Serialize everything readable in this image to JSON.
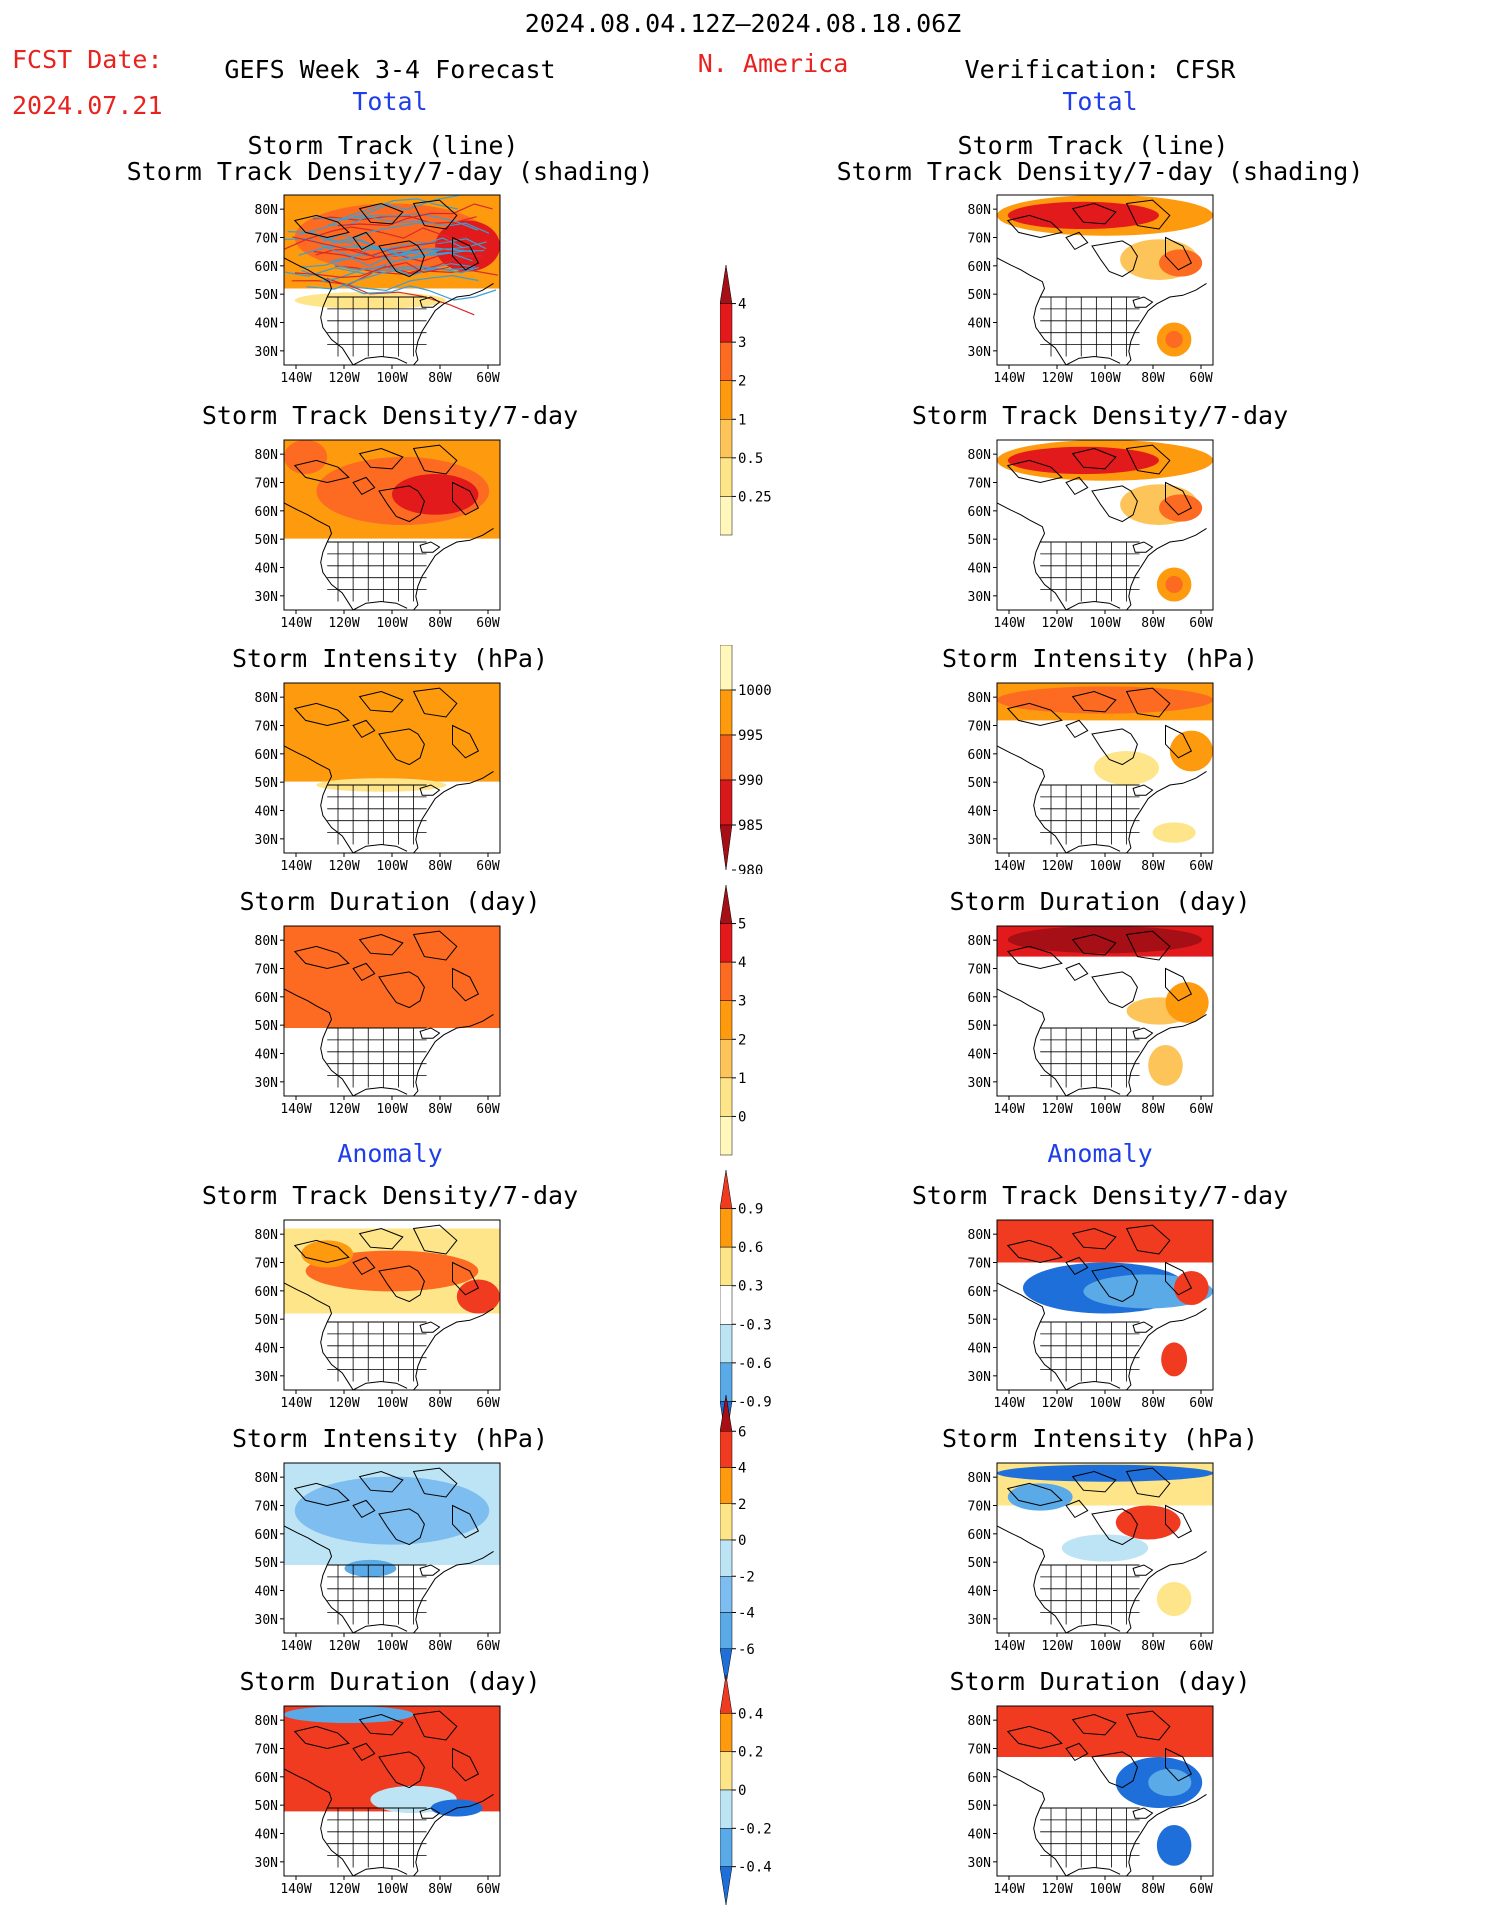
{
  "header": {
    "period": "2024.08.04.12Z–2024.08.18.06Z",
    "fcst_date_label": "FCST Date:",
    "fcst_date_value": "2024.07.21",
    "forecast_title": "GEFS Week 3-4 Forecast",
    "region": "N. America",
    "verification_title": "Verification: CFSR",
    "left_section_total": "Total",
    "right_section_total": "Total",
    "left_section_anomaly": "Anomaly",
    "right_section_anomaly": "Anomaly"
  },
  "panel_titles": {
    "track_line": "Storm Track (line)",
    "track_shading": "Storm Track Density/7-day (shading)",
    "density": "Storm Track Density/7-day",
    "intensity": "Storm Intensity (hPa)",
    "duration": "Storm Duration (day)"
  },
  "chart_data": {
    "type": "heatmap",
    "map_axes": {
      "lon_ticks": [
        "140W",
        "120W",
        "100W",
        "80W",
        "60W"
      ],
      "lat_ticks": [
        "80N",
        "70N",
        "60N",
        "50N",
        "40N",
        "30N"
      ],
      "lon_range": [
        -145,
        -55
      ],
      "lat_range": [
        25,
        85
      ]
    },
    "colorbars": [
      {
        "name": "density_total",
        "labels": [
          "4",
          "3",
          "2",
          "1",
          "0.5",
          "0.25"
        ],
        "colors": [
          "#a50f15",
          "#e31a1c",
          "#fc6b21",
          "#fd9a0e",
          "#fdc45a",
          "#fee58a",
          "#fff7bc"
        ]
      },
      {
        "name": "intensity_total",
        "labels": [
          "1000",
          "995",
          "990",
          "985",
          "980"
        ],
        "colors": [
          "#fff7bc",
          "#fd9a0e",
          "#f4601a",
          "#d7191c",
          "#a50f15"
        ]
      },
      {
        "name": "duration_total",
        "labels": [
          "5",
          "4",
          "3",
          "2",
          "1",
          "0"
        ],
        "colors": [
          "#a50f15",
          "#e31a1c",
          "#fc6b21",
          "#fd9a0e",
          "#fdc45a",
          "#fee58a",
          "#fff7bc"
        ]
      },
      {
        "name": "density_anomaly",
        "labels": [
          "0.9",
          "0.6",
          "0.3",
          "-0.3",
          "-0.6",
          "-0.9"
        ],
        "colors": [
          "#f03b20",
          "#fd9a0e",
          "#fee58a",
          "#ffffff",
          "#bde4f4",
          "#5aaae8",
          "#1e6fd9"
        ]
      },
      {
        "name": "intensity_anomaly",
        "labels": [
          "6",
          "4",
          "2",
          "0",
          "-2",
          "-4",
          "-6"
        ],
        "colors": [
          "#a50f15",
          "#f03b20",
          "#fd9a0e",
          "#fee58a",
          "#bde4f4",
          "#7dbdf0",
          "#5aaae8",
          "#1e6fd9"
        ]
      },
      {
        "name": "duration_anomaly",
        "labels": [
          "0.4",
          "0.2",
          "0",
          "-0.2",
          "-0.4"
        ],
        "colors": [
          "#f03b20",
          "#fd9a0e",
          "#fee58a",
          "#bde4f4",
          "#5aaae8",
          "#1e6fd9"
        ]
      }
    ]
  },
  "colors": {
    "header_red": "#e8221e",
    "header_blue": "#1f3ee8",
    "track_blue": "#3a9fd6",
    "track_red": "#d92a2a"
  }
}
